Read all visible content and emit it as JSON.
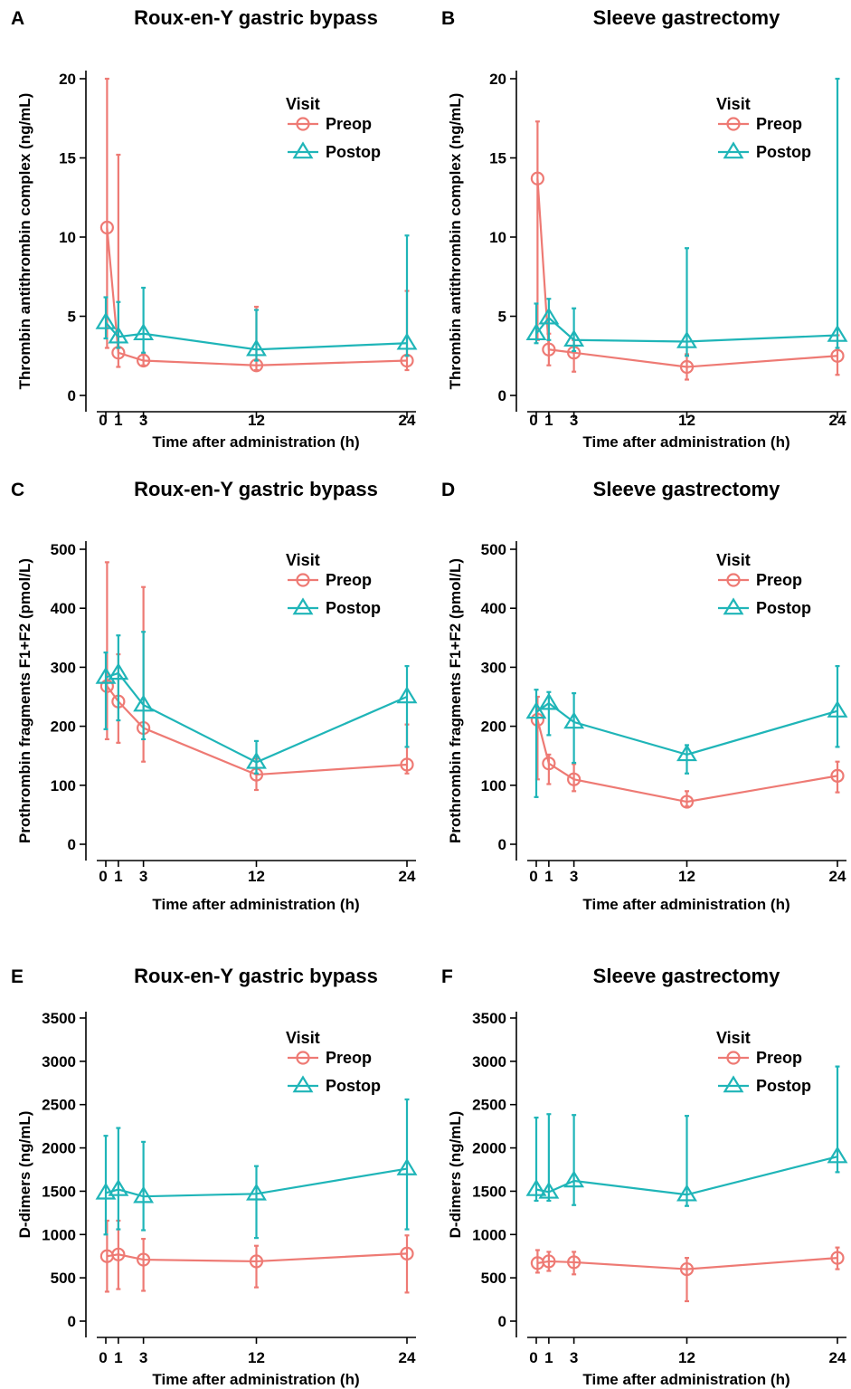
{
  "colors": {
    "preop": "#EE7A74",
    "postop": "#1FB5B8"
  },
  "chart_data": [
    {
      "panel": "A",
      "type": "line",
      "title": "Roux-en-Y gastric bypass",
      "xlabel": "Time after administration (h)",
      "ylabel": "Thrombin antithrombin complex (ng/mL)",
      "xticks": [
        0,
        1,
        3,
        12,
        24
      ],
      "xlim": [
        0,
        24
      ],
      "ylim": [
        0,
        20
      ],
      "yticks": [
        0,
        5,
        10,
        15,
        20
      ],
      "legend": {
        "title": "Visit",
        "position": "top-right"
      },
      "series": [
        {
          "name": "Preop",
          "marker": "circle",
          "x": [
            0.1,
            1,
            3,
            12,
            24
          ],
          "y": [
            10.6,
            2.7,
            2.2,
            1.9,
            2.2
          ],
          "lower": [
            3.0,
            1.8,
            1.9,
            1.6,
            1.6
          ],
          "upper": [
            20.0,
            15.2,
            2.6,
            5.6,
            6.6
          ]
        },
        {
          "name": "Postop",
          "marker": "triangle",
          "x": [
            0,
            1,
            3,
            12,
            24
          ],
          "y": [
            4.6,
            3.7,
            3.9,
            2.9,
            3.3
          ],
          "lower": [
            3.6,
            3.0,
            2.7,
            2.2,
            2.5
          ],
          "upper": [
            6.2,
            5.9,
            6.8,
            5.4,
            10.1
          ]
        }
      ]
    },
    {
      "panel": "B",
      "type": "line",
      "title": "Sleeve gastrectomy",
      "xlabel": "Time after administration (h)",
      "ylabel": "Thrombin antithrombin complex (ng/mL)",
      "xticks": [
        0,
        1,
        3,
        12,
        24
      ],
      "xlim": [
        0,
        24
      ],
      "ylim": [
        0,
        20
      ],
      "yticks": [
        0,
        5,
        10,
        15,
        20
      ],
      "legend": {
        "title": "Visit",
        "position": "top-right"
      },
      "series": [
        {
          "name": "Preop",
          "marker": "circle",
          "x": [
            0.1,
            1,
            3,
            12,
            24
          ],
          "y": [
            13.7,
            2.9,
            2.7,
            1.8,
            2.5
          ],
          "lower": [
            3.5,
            1.9,
            1.5,
            1.0,
            1.3
          ],
          "upper": [
            17.3,
            3.9,
            3.5,
            2.6,
            3.8
          ]
        },
        {
          "name": "Postop",
          "marker": "triangle",
          "x": [
            0,
            1,
            3,
            12,
            24
          ],
          "y": [
            3.9,
            4.9,
            3.5,
            3.4,
            3.8
          ],
          "lower": [
            3.3,
            3.5,
            2.8,
            2.5,
            3.0
          ],
          "upper": [
            5.8,
            6.1,
            5.5,
            9.3,
            20.0
          ]
        }
      ]
    },
    {
      "panel": "C",
      "type": "line",
      "title": "Roux-en-Y gastric bypass",
      "xlabel": "Time after administration (h)",
      "ylabel": "Prothrombin fragments F1+F2 (pmol/L)",
      "xticks": [
        0,
        1,
        3,
        12,
        24
      ],
      "xlim": [
        0,
        24
      ],
      "ylim": [
        0,
        500
      ],
      "yticks": [
        0,
        100,
        200,
        300,
        400,
        500
      ],
      "legend": {
        "title": "Visit",
        "position": "top-right"
      },
      "series": [
        {
          "name": "Preop",
          "marker": "circle",
          "x": [
            0.1,
            1,
            3,
            12,
            24
          ],
          "y": [
            268,
            242,
            197,
            118,
            135
          ],
          "lower": [
            178,
            172,
            140,
            92,
            120
          ],
          "upper": [
            478,
            322,
            436,
            145,
            203
          ]
        },
        {
          "name": "Postop",
          "marker": "triangle",
          "x": [
            0,
            1,
            3,
            12,
            24
          ],
          "y": [
            283,
            290,
            236,
            139,
            250
          ],
          "lower": [
            195,
            210,
            178,
            120,
            165
          ],
          "upper": [
            325,
            354,
            360,
            175,
            302
          ]
        }
      ]
    },
    {
      "panel": "D",
      "type": "line",
      "title": "Sleeve gastrectomy",
      "xlabel": "Time after administration (h)",
      "ylabel": "Prothrombin fragments F1+F2 (pmol/L)",
      "xticks": [
        0,
        1,
        3,
        12,
        24
      ],
      "xlim": [
        0,
        24
      ],
      "ylim": [
        0,
        500
      ],
      "yticks": [
        0,
        100,
        200,
        300,
        400,
        500
      ],
      "legend": {
        "title": "Visit",
        "position": "top-right"
      },
      "series": [
        {
          "name": "Preop",
          "marker": "circle",
          "x": [
            0.1,
            1,
            3,
            12,
            24
          ],
          "y": [
            211,
            137,
            110,
            72,
            116
          ],
          "lower": [
            110,
            102,
            90,
            64,
            88
          ],
          "upper": [
            250,
            152,
            136,
            90,
            140
          ]
        },
        {
          "name": "Postop",
          "marker": "triangle",
          "x": [
            0,
            1,
            3,
            12,
            24
          ],
          "y": [
            224,
            239,
            207,
            152,
            226
          ],
          "lower": [
            80,
            185,
            138,
            120,
            165
          ],
          "upper": [
            262,
            258,
            256,
            168,
            302
          ]
        }
      ]
    },
    {
      "panel": "E",
      "type": "line",
      "title": "Roux-en-Y gastric bypass",
      "xlabel": "Time after administration (h)",
      "ylabel": "D-dimers (ng/mL)",
      "xticks": [
        0,
        1,
        3,
        12,
        24
      ],
      "xlim": [
        0,
        24
      ],
      "ylim": [
        0,
        3500
      ],
      "yticks": [
        0,
        500,
        1000,
        1500,
        2000,
        2500,
        3000,
        3500
      ],
      "legend": {
        "title": "Visit",
        "position": "top-right"
      },
      "series": [
        {
          "name": "Preop",
          "marker": "circle",
          "x": [
            0.1,
            1,
            3,
            12,
            24
          ],
          "y": [
            750,
            770,
            710,
            690,
            780
          ],
          "lower": [
            340,
            370,
            350,
            390,
            330
          ],
          "upper": [
            1160,
            1160,
            950,
            870,
            990
          ]
        },
        {
          "name": "Postop",
          "marker": "triangle",
          "x": [
            0,
            1,
            3,
            12,
            24
          ],
          "y": [
            1480,
            1520,
            1440,
            1470,
            1760
          ],
          "lower": [
            1000,
            1060,
            1050,
            960,
            1060
          ],
          "upper": [
            2140,
            2230,
            2070,
            1790,
            2560
          ]
        }
      ]
    },
    {
      "panel": "F",
      "type": "line",
      "title": "Sleeve gastrectomy",
      "xlabel": "Time after administration (h)",
      "ylabel": "D-dimers (ng/mL)",
      "xticks": [
        0,
        1,
        3,
        12,
        24
      ],
      "xlim": [
        0,
        24
      ],
      "ylim": [
        0,
        3500
      ],
      "yticks": [
        0,
        500,
        1000,
        1500,
        2000,
        2500,
        3000,
        3500
      ],
      "legend": {
        "title": "Visit",
        "position": "top-right"
      },
      "series": [
        {
          "name": "Preop",
          "marker": "circle",
          "x": [
            0.1,
            1,
            3,
            12,
            24
          ],
          "y": [
            670,
            690,
            680,
            600,
            730
          ],
          "lower": [
            560,
            580,
            540,
            230,
            600
          ],
          "upper": [
            820,
            800,
            800,
            730,
            850
          ]
        },
        {
          "name": "Postop",
          "marker": "triangle",
          "x": [
            0,
            1,
            3,
            12,
            24
          ],
          "y": [
            1520,
            1490,
            1620,
            1460,
            1900
          ],
          "lower": [
            1390,
            1390,
            1340,
            1330,
            1720
          ],
          "upper": [
            2350,
            2390,
            2380,
            2370,
            2940
          ]
        }
      ]
    }
  ]
}
